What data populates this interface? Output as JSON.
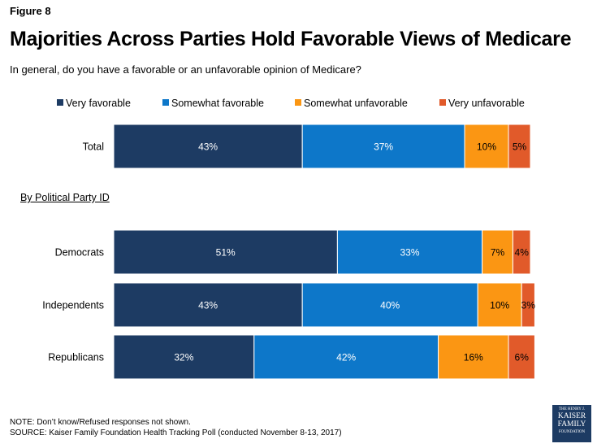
{
  "figure_label": "Figure 8",
  "title": "Majorities Across Parties Hold Favorable Views of Medicare",
  "subtitle": "In general, do you have a favorable or an unfavorable opinion of Medicare?",
  "section_label": "By Political Party ID",
  "note": "NOTE: Don’t know/Refused responses not shown.",
  "source": "SOURCE: Kaiser Family Foundation Health Tracking Poll (conducted November 8-13, 2017)",
  "logo": {
    "line1": "THE HENRY J.",
    "line2": "KAISER",
    "line3": "FAMILY",
    "line4": "FOUNDATION"
  },
  "colors": {
    "very_favorable": "#1d3b63",
    "somewhat_favorable": "#0d77c9",
    "somewhat_unfavorable": "#fb9613",
    "very_unfavorable": "#e15a2a"
  },
  "chart_data": {
    "type": "bar",
    "orientation": "horizontal",
    "stacked": true,
    "title": "Majorities Across Parties Hold Favorable Views of Medicare",
    "subtitle": "In general, do you have a favorable or an unfavorable opinion of Medicare?",
    "xlim": [
      0,
      100
    ],
    "grid": false,
    "legend_position": "top",
    "categories": [
      "Total",
      "Democrats",
      "Independents",
      "Republicans"
    ],
    "series": [
      {
        "name": "Very favorable",
        "color": "#1d3b63",
        "values": [
          43,
          51,
          43,
          32
        ],
        "labels": [
          "43%",
          "51%",
          "43%",
          "32%"
        ]
      },
      {
        "name": "Somewhat favorable",
        "color": "#0d77c9",
        "values": [
          37,
          33,
          40,
          42
        ],
        "labels": [
          "37%",
          "33%",
          "40%",
          "42%"
        ]
      },
      {
        "name": "Somewhat unfavorable",
        "color": "#fb9613",
        "values": [
          10,
          7,
          10,
          16
        ],
        "labels": [
          "10%",
          "7%",
          "10%",
          "16%"
        ]
      },
      {
        "name": "Very unfavorable",
        "color": "#e15a2a",
        "values": [
          5,
          4,
          3,
          6
        ],
        "labels": [
          "5%",
          "4%",
          "3%",
          "6%"
        ]
      }
    ]
  }
}
